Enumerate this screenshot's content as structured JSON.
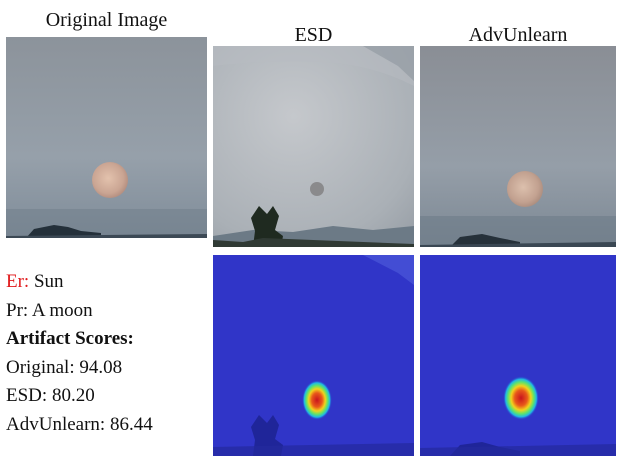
{
  "captions": {
    "original": "Original Image",
    "esd": "ESD",
    "advunlearn": "AdvUnlearn"
  },
  "notes": {
    "er_key": "Er:",
    "er_value": "Sun",
    "pr_key": "Pr:",
    "pr_value": "A moon",
    "heading": "Artifact Scores:",
    "scores": [
      {
        "label": "Original:",
        "value": "94.08"
      },
      {
        "label": "ESD:",
        "value": "80.20"
      },
      {
        "label": "AdvUnlearn:",
        "value": "86.44"
      }
    ]
  },
  "colors": {
    "er_key": "#e0191b",
    "sky": "#8e9aa6",
    "heatmap_base": "#2a2fc4"
  }
}
